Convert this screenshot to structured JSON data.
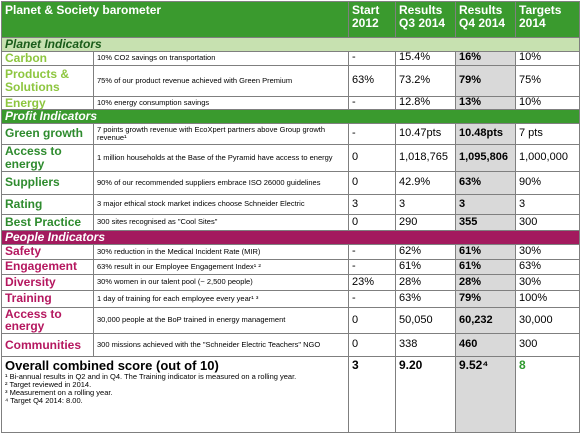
{
  "header": {
    "title": "Planet & Society barometer",
    "columns": [
      "Start 2012",
      "Results Q3 2014",
      "Results Q4 2014",
      "Targets 2014"
    ]
  },
  "sections": [
    {
      "title": "Planet Indicators",
      "rows": [
        {
          "name": "Carbon",
          "description": "10% CO2 savings on transportation",
          "start": "-",
          "q3": "15.4%",
          "q4": "16%",
          "target": "10%"
        },
        {
          "name": "Products & Solutions",
          "description": "75% of our product revenue achieved with Green Premium",
          "start": "63%",
          "q3": "73.2%",
          "q4": "79%",
          "target": "75%"
        },
        {
          "name": "Energy",
          "description": "10% energy consumption savings",
          "start": "-",
          "q3": "12.8%",
          "q4": "13%",
          "target": "10%"
        }
      ]
    },
    {
      "title": "Profit Indicators",
      "rows": [
        {
          "name": "Green growth",
          "description": "7 points growth revenue with EcoXpert partners above Group growth revenue¹",
          "start": "-",
          "q3": "10.47pts",
          "q4": "10.48pts",
          "target": "7 pts"
        },
        {
          "name": "Access to energy",
          "description": "1 million households at the Base of the Pyramid have access to energy",
          "start": "0",
          "q3": "1,018,765",
          "q4": "1,095,806",
          "target": "1,000,000"
        },
        {
          "name": "Suppliers",
          "description": "90% of our recommended suppliers embrace ISO 26000 guidelines",
          "start": "0",
          "q3": "42.9%",
          "q4": "63%",
          "target": "90%"
        },
        {
          "name": "Rating",
          "description": "3 major ethical stock market indices choose Schneider Electric",
          "start": "3",
          "q3": "3",
          "q4": "3",
          "target": "3"
        },
        {
          "name": "Best Practice",
          "description": "300 sites recognised as \"Cool Sites\"",
          "start": "0",
          "q3": "290",
          "q4": "355",
          "target": "300"
        }
      ]
    },
    {
      "title": "People Indicators",
      "rows": [
        {
          "name": "Safety",
          "description": "30% reduction in the Medical Incident Rate (MIR)",
          "start": "-",
          "q3": "62%",
          "q4": "61%",
          "target": "30%"
        },
        {
          "name": "Engagement",
          "description": "63% result in our Employee Engagement Index¹ ²",
          "start": "-",
          "q3": "61%",
          "q4": "61%",
          "target": "63%"
        },
        {
          "name": "Diversity",
          "description": "30% women in our talent pool (~ 2,500 people)",
          "start": "23%",
          "q3": "28%",
          "q4": "28%",
          "target": "30%"
        },
        {
          "name": "Training",
          "description": "1 day of training for each employee every year¹ ³",
          "start": "-",
          "q3": "63%",
          "q4": "79%",
          "target": "100%"
        },
        {
          "name": "Access to energy",
          "description": "30,000 people at the BoP trained in energy management",
          "start": "0",
          "q3": "50,050",
          "q4": "60,232",
          "target": "30,000"
        },
        {
          "name": "Communities",
          "description": "300 missions achieved with the \"Schneider Electric Teachers\" NGO",
          "start": "0",
          "q3": "338",
          "q4": "460",
          "target": "300"
        }
      ]
    }
  ],
  "overall": {
    "label": "Overall combined score (out of 10)",
    "start": "3",
    "q3": "9.20",
    "q4": "9.52⁴",
    "target": "8",
    "notes": [
      "¹ Bi-annual results in Q2 and in Q4. The Training indicator is measured on a rolling year.",
      "² Target reviewed in 2014.",
      "³ Measurement on a rolling year.",
      "⁴ Target Q4 2014: 8.00."
    ]
  }
}
